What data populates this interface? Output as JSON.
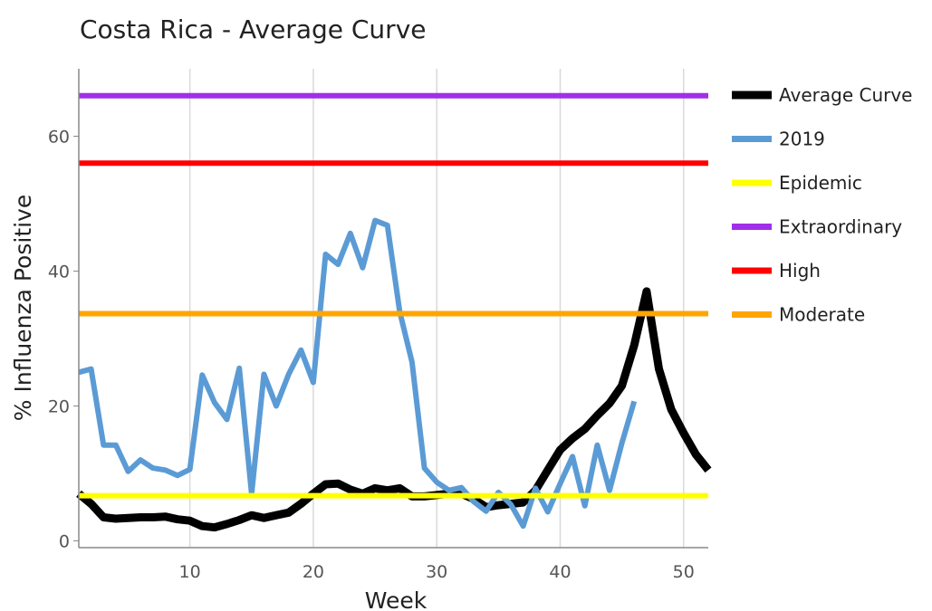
{
  "chart_data": {
    "type": "line",
    "title": "Costa Rica - Average Curve",
    "xlabel": "Week",
    "ylabel": "% Influenza Positive",
    "xlim": [
      1,
      52
    ],
    "ylim": [
      -1,
      70
    ],
    "xticks": [
      10,
      20,
      30,
      40,
      50
    ],
    "yticks": [
      0,
      20,
      40,
      60
    ],
    "grid": "vertical",
    "legend_position": "right",
    "series": [
      {
        "name": "Average Curve",
        "color": "#000000",
        "x": [
          1,
          2,
          3,
          4,
          5,
          6,
          7,
          8,
          9,
          10,
          11,
          12,
          13,
          14,
          15,
          16,
          17,
          18,
          19,
          20,
          21,
          22,
          23,
          24,
          25,
          26,
          27,
          28,
          29,
          30,
          31,
          32,
          33,
          34,
          35,
          36,
          37,
          38,
          39,
          40,
          41,
          42,
          43,
          44,
          45,
          46,
          47,
          48,
          49,
          50,
          51,
          52
        ],
        "y": [
          7,
          5.5,
          3.5,
          3.3,
          3.4,
          3.5,
          3.5,
          3.6,
          3.2,
          3,
          2.2,
          2,
          2.5,
          3.1,
          3.8,
          3.4,
          3.8,
          4.2,
          5.5,
          7,
          8.4,
          8.5,
          7.6,
          7,
          7.8,
          7.5,
          7.8,
          6.6,
          6.6,
          6.8,
          7,
          7,
          6.2,
          5,
          5.3,
          5.5,
          5.7,
          7.5,
          10.5,
          13.5,
          15.2,
          16.6,
          18.6,
          20.4,
          23,
          29,
          37,
          25.5,
          19.5,
          16,
          12.8,
          10.5
        ]
      },
      {
        "name": "2019",
        "color": "#5b9bd5",
        "x": [
          1,
          2,
          3,
          4,
          5,
          6,
          7,
          8,
          9,
          10,
          11,
          12,
          13,
          14,
          15,
          16,
          17,
          18,
          19,
          20,
          21,
          22,
          23,
          24,
          25,
          26,
          27,
          28,
          29,
          30,
          31,
          32,
          33,
          34,
          35,
          36,
          37,
          38,
          39,
          40,
          41,
          42,
          43,
          44,
          45,
          46
        ],
        "y": [
          25,
          25.5,
          14.2,
          14.2,
          10.3,
          12,
          10.8,
          10.5,
          9.7,
          10.6,
          24.6,
          20.5,
          18,
          25.6,
          7,
          24.7,
          20,
          24.7,
          28.3,
          23.5,
          42.5,
          41,
          45.6,
          40.5,
          47.5,
          46.8,
          34,
          26.5,
          10.8,
          8.7,
          7.5,
          7.9,
          5.8,
          4.4,
          7.2,
          5.4,
          2.2,
          7.8,
          4.3,
          8.5,
          12.5,
          5.2,
          14.2,
          7.5,
          14.5,
          20.7
        ]
      },
      {
        "name": "Epidemic",
        "color": "#ffff00",
        "x": [
          1,
          52
        ],
        "y": [
          6.7,
          6.7
        ]
      },
      {
        "name": "Extraordinary",
        "color": "#a030e8",
        "x": [
          1,
          52
        ],
        "y": [
          66,
          66
        ]
      },
      {
        "name": "High",
        "color": "#ff0000",
        "x": [
          1,
          52
        ],
        "y": [
          56,
          56
        ]
      },
      {
        "name": "Moderate",
        "color": "#ffa500",
        "x": [
          1,
          52
        ],
        "y": [
          33.7,
          33.7
        ]
      }
    ]
  }
}
